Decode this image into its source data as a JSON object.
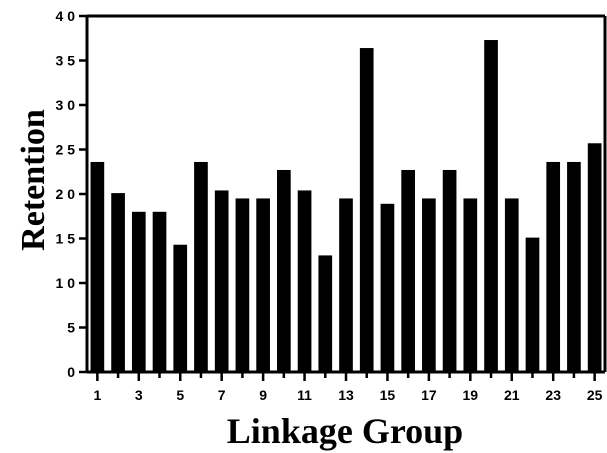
{
  "chart_data": {
    "type": "bar",
    "title": "",
    "xlabel": "Linkage Group",
    "ylabel": "Retention",
    "categories": [
      1,
      2,
      3,
      4,
      5,
      6,
      7,
      8,
      9,
      10,
      11,
      12,
      13,
      14,
      15,
      16,
      17,
      18,
      19,
      20,
      21,
      22,
      23,
      24,
      25
    ],
    "values": [
      23.6,
      20.1,
      18.0,
      18.0,
      14.3,
      23.6,
      20.4,
      19.5,
      19.5,
      22.7,
      20.4,
      13.1,
      19.5,
      36.4,
      18.9,
      22.7,
      19.5,
      22.7,
      19.5,
      37.3,
      19.5,
      15.1,
      23.6,
      23.6,
      25.7
    ],
    "ylim": [
      0,
      40
    ],
    "yticks": [
      0,
      5,
      10,
      15,
      20,
      25,
      30,
      35,
      40
    ],
    "ytick_labels": [
      "0",
      "5",
      "1 0",
      "1 5",
      "2 0",
      "2 5",
      "3 0",
      "3 5",
      "4 0"
    ],
    "xtick_labels": [
      "1",
      "3",
      "5",
      "7",
      "9",
      "11",
      "13",
      "15",
      "17",
      "19",
      "21",
      "23",
      "25"
    ],
    "grid": false,
    "bar_color": "#000000"
  }
}
